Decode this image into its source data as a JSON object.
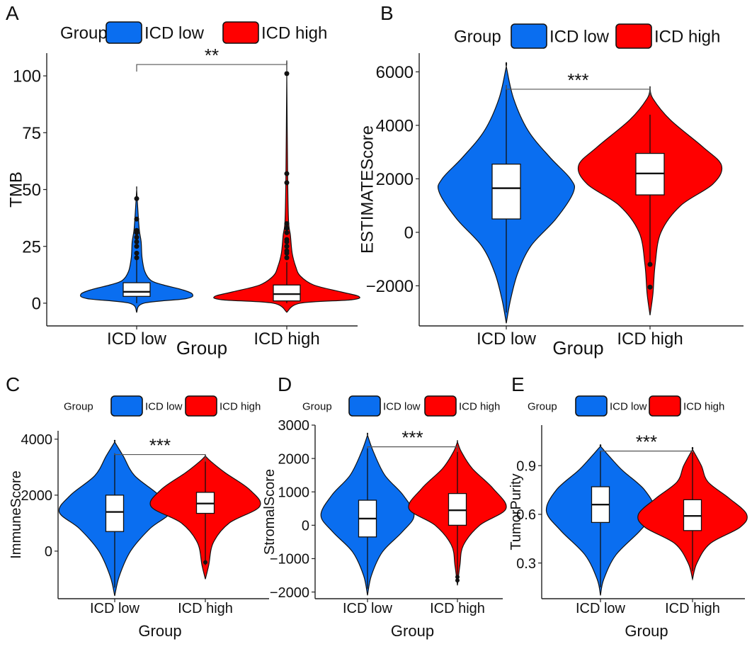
{
  "figure": {
    "legend_title": "Group",
    "group_labels": [
      "ICD low",
      "ICD high"
    ],
    "group_colors": [
      "#0a6ef0",
      "#ff0000"
    ],
    "xlabel": "Group"
  },
  "chart_data": [
    {
      "panel": "A",
      "type": "violin",
      "ylabel": "TMB",
      "ylim": [
        -10,
        110
      ],
      "yticks": [
        0,
        25,
        50,
        75,
        100
      ],
      "categories": [
        "ICD low",
        "ICD high"
      ],
      "significance": "**",
      "bracket_y": 105,
      "series": [
        {
          "name": "ICD low",
          "violin": [
            [
              -4,
              0
            ],
            [
              0,
              0.08
            ],
            [
              2,
              0.55
            ],
            [
              4,
              0.62
            ],
            [
              6,
              0.5
            ],
            [
              8,
              0.3
            ],
            [
              10,
              0.16
            ],
            [
              14,
              0.09
            ],
            [
              20,
              0.06
            ],
            [
              27,
              0.05
            ],
            [
              32,
              0.03
            ],
            [
              40,
              0.015
            ],
            [
              50,
              0
            ]
          ],
          "box": {
            "q1": 3,
            "median": 5,
            "q3": 9,
            "whisker_low": 0,
            "whisker_high": 19
          },
          "outliers": [
            20,
            22,
            25,
            27,
            29,
            31,
            32,
            37,
            46
          ]
        },
        {
          "name": "ICD high",
          "violin": [
            [
              -4,
              0
            ],
            [
              0,
              0.15
            ],
            [
              1.5,
              0.72
            ],
            [
              3,
              0.8
            ],
            [
              5,
              0.6
            ],
            [
              8,
              0.3
            ],
            [
              12,
              0.15
            ],
            [
              16,
              0.1
            ],
            [
              22,
              0.06
            ],
            [
              30,
              0.04
            ],
            [
              36,
              0.02
            ],
            [
              55,
              0.01
            ],
            [
              101,
              0
            ]
          ],
          "box": {
            "q1": 1,
            "median": 4,
            "q3": 8,
            "whisker_low": 0,
            "whisker_high": 18
          },
          "outliers": [
            20,
            22,
            23,
            25,
            27,
            28,
            31,
            33,
            35,
            53,
            57,
            101
          ]
        }
      ]
    },
    {
      "panel": "B",
      "type": "violin",
      "ylabel": "ESTIMATEScore",
      "ylim": [
        -3500,
        6700
      ],
      "yticks": [
        -2000,
        0,
        2000,
        4000,
        6000
      ],
      "categories": [
        "ICD low",
        "ICD high"
      ],
      "significance": "***",
      "bracket_y": 5350,
      "series": [
        {
          "name": "ICD low",
          "violin": [
            [
              -3400,
              0
            ],
            [
              -2500,
              0.06
            ],
            [
              -1500,
              0.16
            ],
            [
              -500,
              0.34
            ],
            [
              500,
              0.68
            ],
            [
              1500,
              0.92
            ],
            [
              2000,
              0.88
            ],
            [
              2800,
              0.6
            ],
            [
              3800,
              0.3
            ],
            [
              5000,
              0.1
            ],
            [
              6200,
              0
            ]
          ],
          "box": {
            "q1": 500,
            "median": 1650,
            "q3": 2550,
            "whisker_low": -3000,
            "whisker_high": 5500
          },
          "outliers": []
        },
        {
          "name": "ICD high",
          "violin": [
            [
              -3100,
              0
            ],
            [
              -2300,
              0.04
            ],
            [
              -1200,
              0.07
            ],
            [
              0,
              0.15
            ],
            [
              1000,
              0.42
            ],
            [
              1800,
              0.86
            ],
            [
              2500,
              0.98
            ],
            [
              3200,
              0.72
            ],
            [
              4200,
              0.28
            ],
            [
              5000,
              0.04
            ],
            [
              5400,
              0
            ]
          ],
          "box": {
            "q1": 1400,
            "median": 2200,
            "q3": 2950,
            "whisker_low": -1200,
            "whisker_high": 4400
          },
          "outliers": [
            -1200,
            -2050
          ]
        }
      ]
    },
    {
      "panel": "C",
      "type": "violin",
      "ylabel": "ImmuneScore",
      "ylim": [
        -1700,
        4300
      ],
      "yticks": [
        0,
        2000,
        4000
      ],
      "categories": [
        "ICD low",
        "ICD high"
      ],
      "significance": "***",
      "bracket_y": 3450,
      "series": [
        {
          "name": "ICD low",
          "violin": [
            [
              -1600,
              0
            ],
            [
              -900,
              0.08
            ],
            [
              0,
              0.28
            ],
            [
              800,
              0.62
            ],
            [
              1400,
              0.98
            ],
            [
              2000,
              0.78
            ],
            [
              2700,
              0.35
            ],
            [
              3400,
              0.15
            ],
            [
              3900,
              0
            ]
          ],
          "box": {
            "q1": 700,
            "median": 1400,
            "q3": 2000,
            "whisker_low": -1300,
            "whisker_high": 3500
          },
          "outliers": []
        },
        {
          "name": "ICD high",
          "violin": [
            [
              -1000,
              0
            ],
            [
              -500,
              0.06
            ],
            [
              300,
              0.14
            ],
            [
              1000,
              0.42
            ],
            [
              1600,
              0.96
            ],
            [
              2200,
              0.78
            ],
            [
              2800,
              0.35
            ],
            [
              3200,
              0.1
            ],
            [
              3400,
              0
            ]
          ],
          "box": {
            "q1": 1350,
            "median": 1700,
            "q3": 2100,
            "whisker_low": -500,
            "whisker_high": 3200
          },
          "outliers": [
            -400
          ]
        }
      ]
    },
    {
      "panel": "D",
      "type": "violin",
      "ylabel": "StromalScore",
      "ylim": [
        -2200,
        3000
      ],
      "yticks": [
        -2000,
        -1000,
        0,
        1000,
        2000,
        3000
      ],
      "categories": [
        "ICD low",
        "ICD high"
      ],
      "significance": "***",
      "bracket_y": 2350,
      "series": [
        {
          "name": "ICD low",
          "violin": [
            [
              -2100,
              0
            ],
            [
              -1500,
              0.08
            ],
            [
              -800,
              0.3
            ],
            [
              -200,
              0.7
            ],
            [
              300,
              0.94
            ],
            [
              900,
              0.72
            ],
            [
              1500,
              0.35
            ],
            [
              2200,
              0.12
            ],
            [
              2700,
              0
            ]
          ],
          "box": {
            "q1": -350,
            "median": 200,
            "q3": 750,
            "whisker_low": -1900,
            "whisker_high": 2300
          },
          "outliers": []
        },
        {
          "name": "ICD high",
          "violin": [
            [
              -1800,
              0
            ],
            [
              -1200,
              0.05
            ],
            [
              -600,
              0.12
            ],
            [
              0,
              0.45
            ],
            [
              500,
              0.98
            ],
            [
              1100,
              0.72
            ],
            [
              1700,
              0.3
            ],
            [
              2200,
              0.08
            ],
            [
              2500,
              0
            ]
          ],
          "box": {
            "q1": 0,
            "median": 450,
            "q3": 950,
            "whisker_low": -1600,
            "whisker_high": 2200
          },
          "outliers": [
            -1550,
            -1650
          ]
        }
      ]
    },
    {
      "panel": "E",
      "type": "violin",
      "ylabel": "TumorPurity",
      "ylim": [
        0.08,
        1.15
      ],
      "yticks": [
        0.3,
        0.6,
        0.9
      ],
      "categories": [
        "ICD low",
        "ICD high"
      ],
      "significance": "***",
      "bracket_y": 0.99,
      "series": [
        {
          "name": "ICD low",
          "violin": [
            [
              0.1,
              0
            ],
            [
              0.2,
              0.06
            ],
            [
              0.35,
              0.28
            ],
            [
              0.5,
              0.72
            ],
            [
              0.62,
              0.98
            ],
            [
              0.75,
              0.8
            ],
            [
              0.87,
              0.4
            ],
            [
              0.95,
              0.18
            ],
            [
              1.02,
              0
            ]
          ],
          "box": {
            "q1": 0.55,
            "median": 0.66,
            "q3": 0.77,
            "whisker_low": 0.15,
            "whisker_high": 0.99
          },
          "outliers": []
        },
        {
          "name": "ICD high",
          "violin": [
            [
              0.2,
              0
            ],
            [
              0.3,
              0.08
            ],
            [
              0.42,
              0.32
            ],
            [
              0.52,
              0.86
            ],
            [
              0.6,
              0.98
            ],
            [
              0.7,
              0.66
            ],
            [
              0.8,
              0.28
            ],
            [
              0.9,
              0.16
            ],
            [
              1.0,
              0
            ]
          ],
          "box": {
            "q1": 0.5,
            "median": 0.59,
            "q3": 0.69,
            "whisker_low": 0.25,
            "whisker_high": 0.98
          },
          "outliers": []
        }
      ]
    }
  ]
}
